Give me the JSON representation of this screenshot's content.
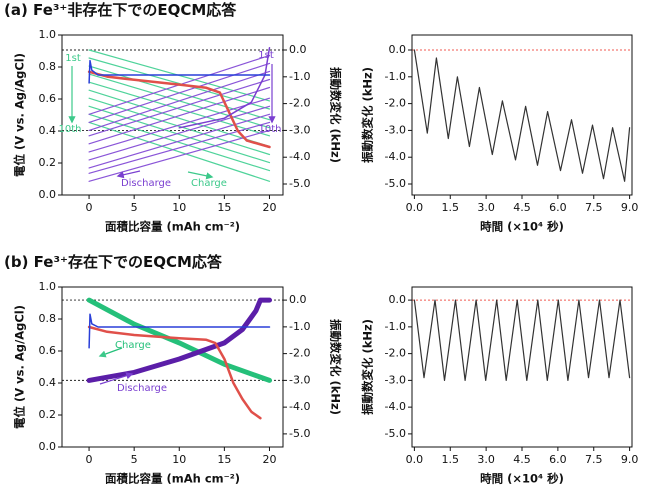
{
  "chart_data": [
    {
      "type": "line",
      "title": "(a) Fe³⁺非存在下でのEQCM応答",
      "xlabel": "面積比容量 (mAh cm⁻²)",
      "ylabel": "電位 (V vs. Ag/AgCl)",
      "y2label": "振動数変化 (kHz)",
      "xlim": [
        -3,
        21.5
      ],
      "xticks": [
        0,
        5,
        10,
        15,
        20
      ],
      "ylim": [
        0,
        1.0
      ],
      "yticks": [
        {
          "value": 0,
          "label": "0.0"
        },
        {
          "value": 0.2,
          "label": "0.2"
        },
        {
          "value": 0.4,
          "label": "0.4"
        },
        {
          "value": 0.6,
          "label": "0.6"
        },
        {
          "value": 0.8,
          "label": "0.8"
        },
        {
          "value": 1.0,
          "label": "1.0"
        }
      ],
      "y2lim": [
        -5.41,
        0.56
      ],
      "y2ticks": [
        {
          "value": 0,
          "label": "0.0"
        },
        {
          "value": -1,
          "label": "-1.0"
        },
        {
          "value": -2,
          "label": "-2.0"
        },
        {
          "value": -3,
          "label": "-3.0"
        },
        {
          "value": -4,
          "label": "-4.0"
        },
        {
          "value": -5,
          "label": "-5.0"
        }
      ],
      "hlines_y2": [
        0,
        -3
      ],
      "series": [
        {
          "color": "#4fd39a",
          "axis": "y2",
          "x": [
            0,
            20
          ],
          "values": [
            0,
            -1.9
          ]
        },
        {
          "color": "#4fd39a",
          "axis": "y2",
          "x": [
            0,
            20
          ],
          "values": [
            -0.3,
            -2.2
          ]
        },
        {
          "color": "#4fd39a",
          "axis": "y2",
          "x": [
            0,
            20
          ],
          "values": [
            -0.6,
            -2.6
          ]
        },
        {
          "color": "#4fd39a",
          "axis": "y2",
          "x": [
            0,
            20
          ],
          "values": [
            -0.9,
            -2.9
          ]
        },
        {
          "color": "#4fd39a",
          "axis": "y2",
          "x": [
            0,
            20
          ],
          "values": [
            -1.2,
            -3.2
          ]
        },
        {
          "color": "#4fd39a",
          "axis": "y2",
          "x": [
            0,
            20
          ],
          "values": [
            -1.5,
            -3.6
          ]
        },
        {
          "color": "#4fd39a",
          "axis": "y2",
          "x": [
            0,
            20
          ],
          "values": [
            -1.8,
            -3.9
          ]
        },
        {
          "color": "#4fd39a",
          "axis": "y2",
          "x": [
            0,
            20
          ],
          "values": [
            -2.1,
            -4.2
          ]
        },
        {
          "color": "#4fd39a",
          "axis": "y2",
          "x": [
            0,
            20
          ],
          "values": [
            -2.4,
            -4.5
          ]
        },
        {
          "color": "#4fd39a",
          "axis": "y2",
          "x": [
            0,
            20
          ],
          "values": [
            -2.7,
            -4.9
          ]
        },
        {
          "color": "#8a55d8",
          "axis": "y2",
          "x": [
            0,
            20
          ],
          "values": [
            -2.4,
            -0.2
          ]
        },
        {
          "color": "#8a55d8",
          "axis": "y2",
          "x": [
            0,
            20
          ],
          "values": [
            -2.7,
            -0.5
          ]
        },
        {
          "color": "#8a55d8",
          "axis": "y2",
          "x": [
            0,
            20
          ],
          "values": [
            -3.0,
            -0.8
          ]
        },
        {
          "color": "#8a55d8",
          "axis": "y2",
          "x": [
            0,
            20
          ],
          "values": [
            -3.2,
            -1.1
          ]
        },
        {
          "color": "#8a55d8",
          "axis": "y2",
          "x": [
            0,
            20
          ],
          "values": [
            -3.5,
            -1.4
          ]
        },
        {
          "color": "#8a55d8",
          "axis": "y2",
          "x": [
            0,
            20
          ],
          "values": [
            -3.8,
            -1.8
          ]
        },
        {
          "color": "#8a55d8",
          "axis": "y2",
          "x": [
            0,
            20
          ],
          "values": [
            -4.1,
            -2.1
          ]
        },
        {
          "color": "#8a55d8",
          "axis": "y2",
          "x": [
            0,
            20
          ],
          "values": [
            -4.4,
            -2.4
          ]
        },
        {
          "color": "#8a55d8",
          "axis": "y2",
          "x": [
            0,
            20
          ],
          "values": [
            -4.6,
            -2.7
          ]
        },
        {
          "color": "#8a55d8",
          "axis": "y2",
          "x": [
            0,
            20
          ],
          "values": [
            -4.9,
            -3.0
          ]
        },
        {
          "color": "#e0504a",
          "linewidth": 2.5,
          "x": [
            0,
            2,
            5,
            10,
            13,
            14.5,
            15.5,
            16.5,
            17.5,
            20
          ],
          "values": [
            0.77,
            0.74,
            0.72,
            0.69,
            0.67,
            0.64,
            0.52,
            0.4,
            0.34,
            0.3
          ]
        },
        {
          "color": "#7a3fd0",
          "linewidth": 1.5,
          "x": [
            10,
            15,
            18,
            19.5,
            20
          ],
          "values": [
            0.42,
            0.48,
            0.58,
            0.75,
            0.92
          ]
        },
        {
          "color": "#2a3fd8",
          "linewidth": 1.5,
          "x": [
            0,
            0.1,
            0.3,
            1,
            20
          ],
          "values": [
            0.7,
            0.84,
            0.78,
            0.75,
            0.75
          ]
        }
      ],
      "annotations": [
        {
          "text": "1st",
          "color": "#3cc98a"
        },
        {
          "text": "1st",
          "color": "#7a3fd0"
        },
        {
          "text": "10th",
          "color": "#3cc98a"
        },
        {
          "text": "10th",
          "color": "#7a3fd0"
        },
        {
          "text": "Discharge",
          "color": "#7a3fd0"
        },
        {
          "text": "Charge",
          "color": "#3cc98a"
        }
      ]
    },
    {
      "type": "line",
      "xlabel": "時間 (×10⁴ 秒)",
      "ylabel": "振動数変化 (kHz)",
      "xlim": [
        -0.1,
        9.1
      ],
      "xticks": [
        {
          "value": 0,
          "label": "0.0"
        },
        {
          "value": 1.5,
          "label": "1.5"
        },
        {
          "value": 3,
          "label": "3.0"
        },
        {
          "value": 4.5,
          "label": "4.5"
        },
        {
          "value": 6,
          "label": "6.0"
        },
        {
          "value": 7.5,
          "label": "7.5"
        },
        {
          "value": 9,
          "label": "9.0"
        }
      ],
      "ylim": [
        -5.41,
        0.56
      ],
      "yticks": [
        {
          "value": 0,
          "label": "0.0"
        },
        {
          "value": -1,
          "label": "-1.0"
        },
        {
          "value": -2,
          "label": "-2.0"
        },
        {
          "value": -3,
          "label": "-3.0"
        },
        {
          "value": -4,
          "label": "-4.0"
        },
        {
          "value": -5,
          "label": "-5.0"
        }
      ],
      "hline": 0,
      "hline_color": "#f05a50",
      "series": [
        {
          "color": "#333333",
          "x": [
            0,
            0.54,
            0.92,
            1.42,
            1.8,
            2.3,
            2.72,
            3.26,
            3.68,
            4.23,
            4.65,
            5.15,
            5.57,
            6.11,
            6.57,
            7.03,
            7.45,
            7.91,
            8.29,
            8.79,
            9.0
          ],
          "values": [
            0,
            -3.1,
            -0.3,
            -3.3,
            -1.0,
            -3.6,
            -1.4,
            -3.9,
            -1.9,
            -4.1,
            -2.1,
            -4.3,
            -2.3,
            -4.5,
            -2.6,
            -4.6,
            -2.8,
            -4.8,
            -2.9,
            -4.9,
            -2.9
          ]
        }
      ]
    },
    {
      "type": "line",
      "title": "(b) Fe³⁺存在下でのEQCM応答",
      "xlabel": "面積比容量 (mAh cm⁻²)",
      "ylabel": "電位 (V vs. Ag/AgCl)",
      "y2label": "振動数変化 (kHz)",
      "xlim": [
        -3,
        21.5
      ],
      "xticks": [
        0,
        5,
        10,
        15,
        20
      ],
      "ylim": [
        0,
        1.0
      ],
      "yticks": [
        {
          "value": 0,
          "label": "0.0"
        },
        {
          "value": 0.2,
          "label": "0.2"
        },
        {
          "value": 0.4,
          "label": "0.4"
        },
        {
          "value": 0.6,
          "label": "0.6"
        },
        {
          "value": 0.8,
          "label": "0.8"
        },
        {
          "value": 1.0,
          "label": "1.0"
        }
      ],
      "y2lim": [
        -5.49,
        0.49
      ],
      "y2ticks": [
        {
          "value": 0,
          "label": "0.0"
        },
        {
          "value": -1,
          "label": "-1.0"
        },
        {
          "value": -2,
          "label": "-2.0"
        },
        {
          "value": -3,
          "label": "-3.0"
        },
        {
          "value": -4,
          "label": "-4.0"
        },
        {
          "value": -5,
          "label": "-5.0"
        }
      ],
      "hlines_y2": [
        0,
        -3
      ],
      "series": [
        {
          "color": "#25c07a",
          "axis": "y2",
          "linewidth": 5,
          "x": [
            0,
            5,
            10,
            15,
            20
          ],
          "values": [
            0,
            -0.9,
            -1.6,
            -2.4,
            -3.0
          ]
        },
        {
          "color": "#5b1ea8",
          "axis": "y2",
          "linewidth": 5,
          "x": [
            0,
            5,
            10,
            15,
            17,
            18.5,
            19,
            20
          ],
          "values": [
            -3.0,
            -2.7,
            -2.2,
            -1.6,
            -1.1,
            -0.4,
            0,
            0
          ]
        },
        {
          "color": "#e0504a",
          "linewidth": 2.5,
          "x": [
            0,
            2,
            5,
            10,
            13,
            14,
            15,
            16,
            17,
            18,
            19
          ],
          "values": [
            0.75,
            0.72,
            0.7,
            0.68,
            0.67,
            0.65,
            0.55,
            0.4,
            0.3,
            0.22,
            0.18
          ]
        },
        {
          "color": "#2a3fd8",
          "linewidth": 1.5,
          "x": [
            0,
            0.1,
            0.3,
            1,
            20
          ],
          "values": [
            0.62,
            0.83,
            0.77,
            0.75,
            0.75
          ]
        }
      ],
      "annotations": [
        {
          "text": "Charge",
          "color": "#25c07a"
        },
        {
          "text": "Discharge",
          "color": "#7a3fd0"
        }
      ]
    },
    {
      "type": "line",
      "xlabel": "時間 (×10⁴ 秒)",
      "ylabel": "振動数変化 (kHz)",
      "xlim": [
        -0.1,
        9.1
      ],
      "xticks": [
        {
          "value": 0,
          "label": "0.0"
        },
        {
          "value": 1.5,
          "label": "1.5"
        },
        {
          "value": 3,
          "label": "3.0"
        },
        {
          "value": 4.5,
          "label": "4.5"
        },
        {
          "value": 6,
          "label": "6.0"
        },
        {
          "value": 7.5,
          "label": "7.5"
        },
        {
          "value": 9,
          "label": "9.0"
        }
      ],
      "ylim": [
        -5.49,
        0.49
      ],
      "yticks": [
        {
          "value": 0,
          "label": "0.0"
        },
        {
          "value": -1,
          "label": "-1.0"
        },
        {
          "value": -2,
          "label": "-2.0"
        },
        {
          "value": -3,
          "label": "-3.0"
        },
        {
          "value": -4,
          "label": "-4.0"
        },
        {
          "value": -5,
          "label": "-5.0"
        }
      ],
      "hline": 0,
      "hline_color": "#f05a50",
      "series": [
        {
          "color": "#333333",
          "x": [
            0,
            0.4,
            0.86,
            1.26,
            1.72,
            2.12,
            2.58,
            2.98,
            3.44,
            3.84,
            4.3,
            4.7,
            5.16,
            5.56,
            6.02,
            6.42,
            6.88,
            7.28,
            7.74,
            8.14,
            8.6,
            9.0
          ],
          "values": [
            0,
            -2.9,
            0,
            -3.0,
            0,
            -3.0,
            0,
            -3.0,
            0,
            -3.0,
            0,
            -3.0,
            0,
            -3.0,
            0,
            -3.0,
            0,
            -2.9,
            0,
            -2.9,
            0,
            -2.9
          ]
        }
      ]
    }
  ]
}
